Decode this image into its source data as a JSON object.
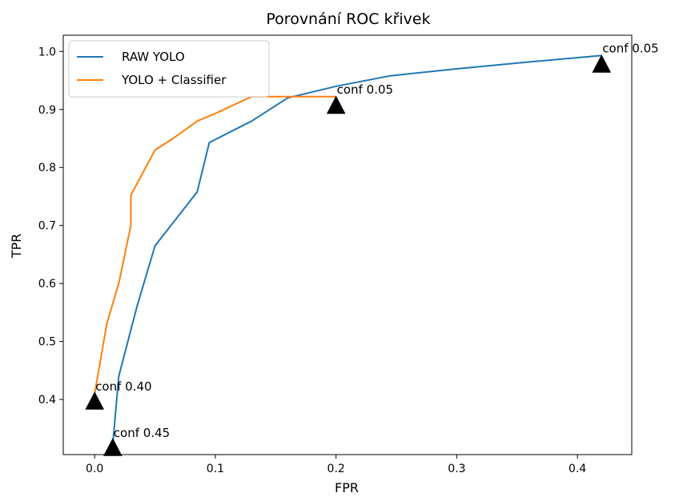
{
  "chart_data": {
    "type": "line",
    "title": "Porovnání ROC křivek",
    "xlabel": "FPR",
    "ylabel": "TPR",
    "xlim": [
      -0.026,
      0.445
    ],
    "ylim": [
      0.305,
      1.028
    ],
    "xticks": [
      0.0,
      0.1,
      0.2,
      0.3,
      0.4
    ],
    "xtick_labels": [
      "0.0",
      "0.1",
      "0.2",
      "0.3",
      "0.4"
    ],
    "yticks": [
      0.4,
      0.5,
      0.6,
      0.7,
      0.8,
      0.9,
      1.0
    ],
    "ytick_labels": [
      "0.4",
      "0.5",
      "0.6",
      "0.7",
      "0.8",
      "0.9",
      "1.0"
    ],
    "grid": false,
    "legend_position": "upper-left",
    "series": [
      {
        "name": "RAW YOLO",
        "color": "#1f77b4",
        "x": [
          0.015,
          0.02,
          0.035,
          0.05,
          0.085,
          0.095,
          0.13,
          0.16,
          0.2,
          0.245,
          0.3,
          0.35,
          0.42
        ],
        "y": [
          0.322,
          0.44,
          0.56,
          0.665,
          0.758,
          0.843,
          0.88,
          0.92,
          0.94,
          0.958,
          0.97,
          0.98,
          0.993
        ]
      },
      {
        "name": "YOLO + Classifier",
        "color": "#ff7f0e",
        "x": [
          0.0,
          0.01,
          0.02,
          0.03,
          0.03,
          0.05,
          0.065,
          0.085,
          0.1,
          0.13,
          0.2
        ],
        "y": [
          0.41,
          0.53,
          0.6,
          0.7,
          0.752,
          0.83,
          0.85,
          0.88,
          0.893,
          0.922,
          0.922
        ]
      }
    ],
    "annotations": [
      {
        "text": "conf 0.05",
        "x": 0.42,
        "y": 0.993,
        "marker_y": 0.978
      },
      {
        "text": "conf 0.05",
        "x": 0.2,
        "y": 0.922,
        "marker_y": 0.907
      },
      {
        "text": "conf 0.40",
        "x": 0.0,
        "y": 0.41,
        "marker_y": 0.397
      },
      {
        "text": "conf 0.45",
        "x": 0.015,
        "y": 0.33,
        "marker_y": 0.317
      }
    ]
  }
}
